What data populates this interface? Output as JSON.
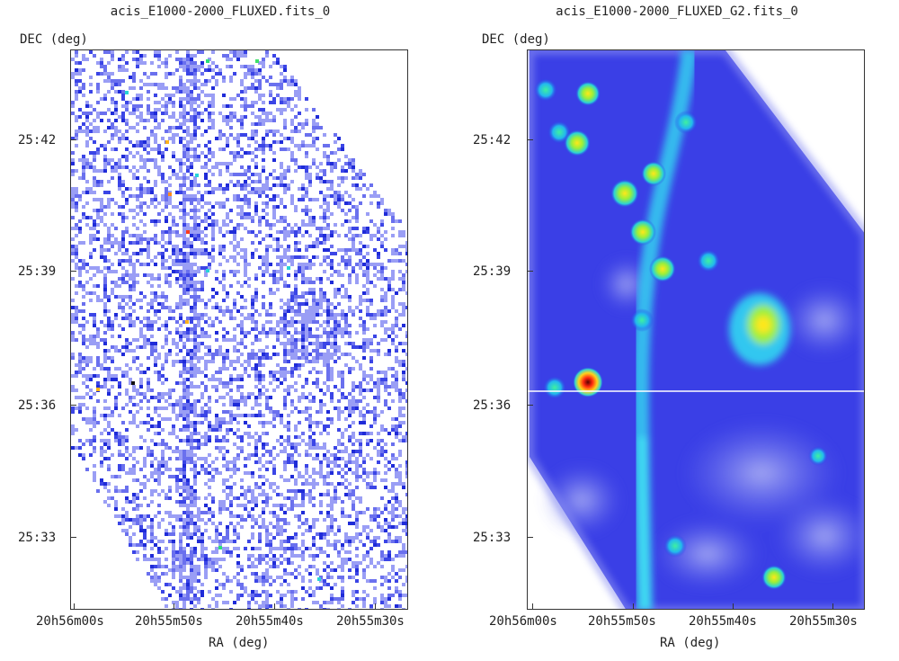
{
  "panels": [
    {
      "title": "acis_E1000-2000_FLUXED.fits_0",
      "ylabel": "DEC (deg)",
      "xlabel": "RA (deg)",
      "yticks": [
        "25:42",
        "25:39",
        "25:36",
        "25:33"
      ],
      "xticks": [
        "20h56m00s",
        "20h55m50s",
        "20h55m40s",
        "20h55m30s"
      ]
    },
    {
      "title": "acis_E1000-2000_FLUXED_G2.fits_0",
      "ylabel": "DEC (deg)",
      "xlabel": "RA (deg)",
      "yticks": [
        "25:42",
        "25:39",
        "25:36",
        "25:33"
      ],
      "xticks": [
        "20h56m00s",
        "20h55m50s",
        "20h55m40s",
        "20h55m30s"
      ]
    }
  ],
  "colors": {
    "background": "#ffffff",
    "raw_low": "#7b7ff0",
    "raw_mid": "#1f2bd8",
    "smooth_base": "#2a35e8",
    "smooth_filament": "#33c7f0",
    "source_hot": "#ff3b1a"
  }
}
